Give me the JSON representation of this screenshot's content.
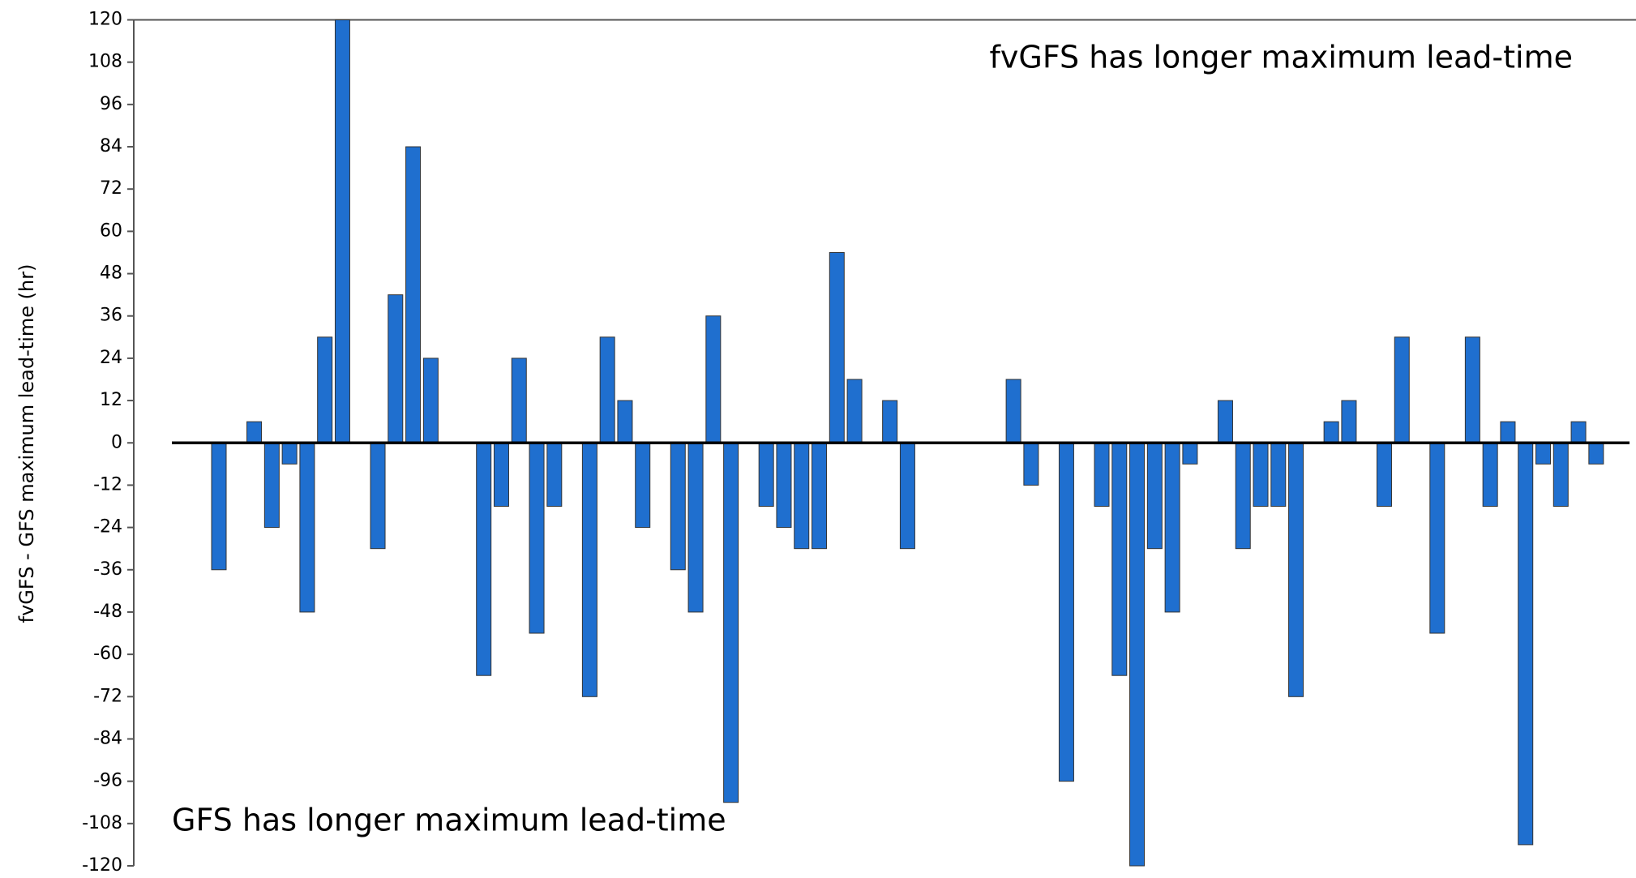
{
  "chart_data": {
    "type": "bar",
    "y_label": "fvGFS - GFS maximum lead-time (hr)",
    "annotations": [
      "fvGFS has longer maximum lead-time",
      "GFS has longer maximum lead-time"
    ],
    "categories": [
      null,
      null,
      null,
      null,
      null,
      null,
      null,
      null,
      null,
      null,
      null,
      null,
      null,
      null,
      null,
      null,
      null,
      null,
      null,
      null,
      null,
      null,
      null,
      null,
      null,
      null,
      null,
      null,
      null,
      null,
      null,
      null,
      null,
      null,
      null,
      null,
      null,
      null,
      null,
      null,
      null,
      null,
      null,
      null,
      null,
      null,
      null,
      null,
      null,
      null,
      null,
      null,
      null,
      null,
      null,
      null,
      null,
      null,
      null,
      null,
      null,
      null,
      null,
      null,
      null,
      null,
      null,
      null,
      null,
      null,
      null,
      null,
      null,
      null,
      null,
      null,
      null,
      null,
      null
    ],
    "values": [
      -36,
      null,
      6,
      -24,
      -6,
      -48,
      30,
      120,
      null,
      -30,
      42,
      84,
      24,
      null,
      null,
      -66,
      -18,
      24,
      -54,
      -18,
      null,
      -72,
      30,
      12,
      -24,
      null,
      -36,
      -48,
      36,
      -102,
      null,
      -18,
      -24,
      -30,
      -30,
      54,
      18,
      null,
      12,
      -30,
      null,
      null,
      null,
      null,
      null,
      18,
      -12,
      null,
      -96,
      null,
      -18,
      -66,
      -120,
      -30,
      -48,
      -6,
      null,
      12,
      -30,
      -18,
      -18,
      -72,
      null,
      6,
      12,
      null,
      -18,
      30,
      null,
      -54,
      null,
      30,
      -18,
      6,
      -114,
      -6,
      -18,
      6,
      -6
    ],
    "color": "#1f6fcf",
    "ylim": [
      -120,
      120
    ],
    "yticks": [
      -120,
      -108,
      -96,
      -84,
      -72,
      -60,
      -48,
      -36,
      -24,
      -12,
      0,
      12,
      24,
      36,
      48,
      60,
      72,
      84,
      96,
      108,
      120
    ]
  }
}
